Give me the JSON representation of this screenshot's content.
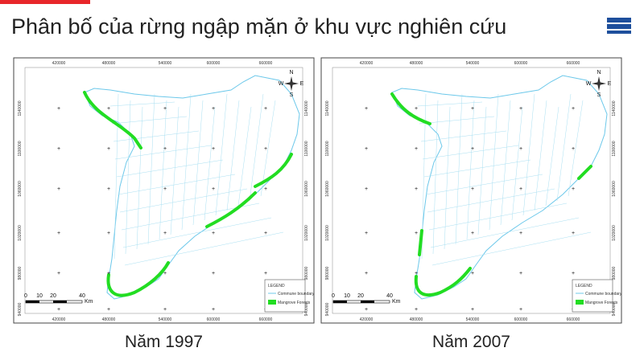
{
  "title": "Phân bố của rừng ngập mặn ở khu vực nghiên cứu",
  "maps": [
    {
      "caption": "Năm 1997"
    },
    {
      "caption": "Năm 2007"
    }
  ],
  "map_frame": {
    "x_labels": [
      "420000",
      "480000",
      "540000",
      "600000",
      "660000"
    ],
    "y_labels": [
      "1140000",
      "1100000",
      "1060000",
      "1020000",
      "980000",
      "940000"
    ],
    "compass": [
      "N",
      "S",
      "E",
      "W"
    ],
    "scale_labels": [
      "0",
      "10",
      "20",
      "40"
    ],
    "scale_unit": "Km",
    "legend_title": "LEGEND",
    "legend_items": [
      "Commune boundary",
      "Mangrove Forests"
    ]
  }
}
